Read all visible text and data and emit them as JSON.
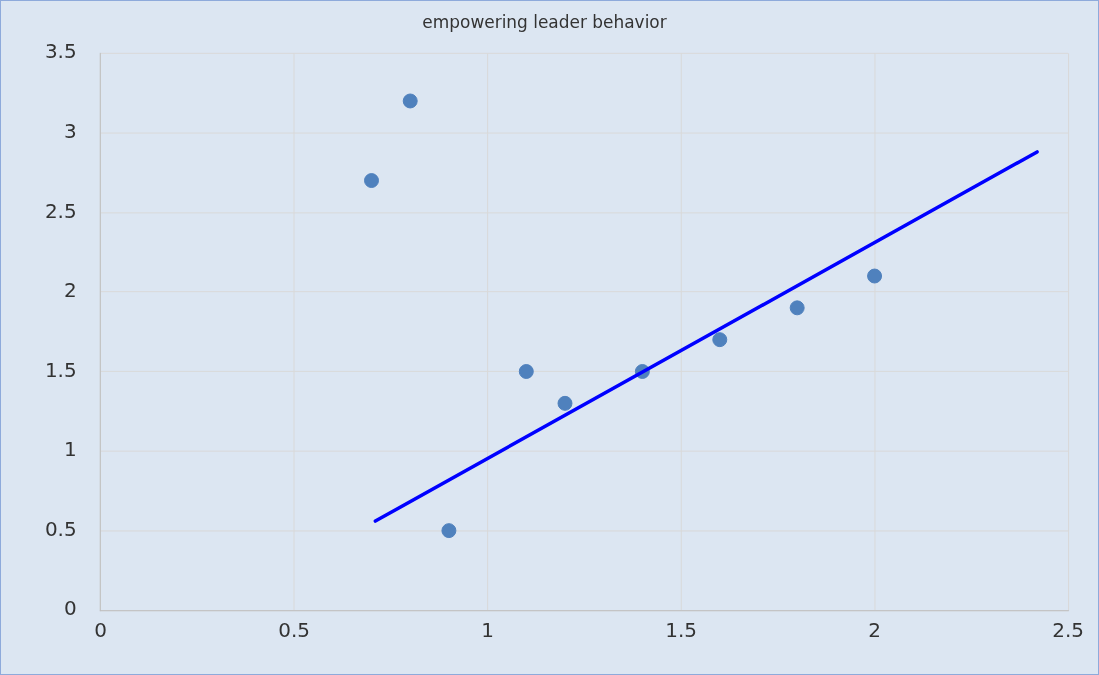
{
  "chart_data": {
    "type": "scatter",
    "title": "empowering leader behavior",
    "x": [
      0.7,
      0.8,
      0.9,
      1.1,
      1.2,
      1.4,
      1.6,
      1.8,
      2.0
    ],
    "marker": "circle",
    "series": [
      {
        "color": "#4f81bd",
        "values": [
          2.7,
          3.2,
          0.5,
          1.5,
          1.3,
          1.5,
          1.7,
          1.9,
          2.1
        ]
      },
      {
        "type": "line",
        "color": "#0000ff",
        "x": [
          0.71,
          2.42
        ],
        "values": [
          0.56,
          2.88
        ],
        "marker": "none",
        "line_style": "solid"
      }
    ],
    "xlim": [
      0,
      2.5
    ],
    "xticks": [
      0,
      0.5,
      1,
      1.5,
      2,
      2.5
    ],
    "ylim": [
      0,
      3.5
    ],
    "yticks": [
      0,
      0.5,
      1,
      1.5,
      2,
      2.5,
      3,
      3.5
    ],
    "grid": true
  }
}
